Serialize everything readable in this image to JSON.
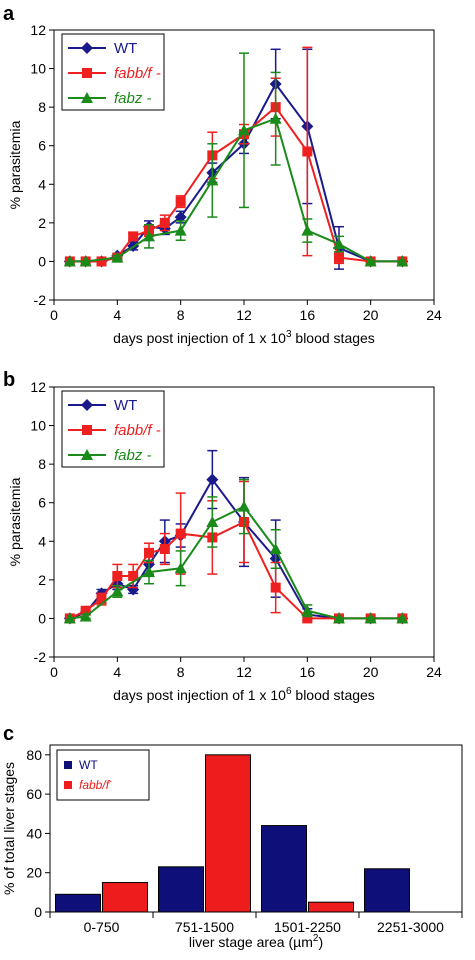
{
  "figure": {
    "panels": [
      "a",
      "b",
      "c"
    ]
  },
  "chart_data": [
    {
      "type": "line",
      "panel": "a",
      "xlabel_main": "days post injection of 1 x 10",
      "xlabel_sup": "3",
      "xlabel_tail": " blood stages",
      "ylabel": "% parasitemia",
      "xlim": [
        0,
        24
      ],
      "ylim": [
        -2,
        12
      ],
      "xticks": [
        0,
        4,
        8,
        12,
        16,
        20,
        24
      ],
      "yticks": [
        -2,
        0,
        2,
        4,
        6,
        8,
        10,
        12
      ],
      "legend_position": "top-left",
      "series": [
        {
          "name": "WT",
          "italic": false,
          "color": "#1a1a8c",
          "marker": "diamond",
          "points": [
            {
              "x": 1,
              "y": 0,
              "err": 0
            },
            {
              "x": 2,
              "y": 0,
              "err": 0
            },
            {
              "x": 3,
              "y": 0,
              "err": 0
            },
            {
              "x": 4,
              "y": 0.3,
              "err": 0.1
            },
            {
              "x": 5,
              "y": 0.8,
              "err": 0.2
            },
            {
              "x": 6,
              "y": 1.8,
              "err": 0.3
            },
            {
              "x": 7,
              "y": 1.7,
              "err": 0.3
            },
            {
              "x": 8,
              "y": 2.3,
              "err": 0.3
            },
            {
              "x": 10,
              "y": 4.6,
              "err": 0.5
            },
            {
              "x": 12,
              "y": 6.1,
              "err": 0.5
            },
            {
              "x": 14,
              "y": 9.2,
              "err": 1.8
            },
            {
              "x": 16,
              "y": 7.0,
              "err": 4.0
            },
            {
              "x": 18,
              "y": 0.7,
              "err": 1.1
            },
            {
              "x": 20,
              "y": 0,
              "err": 0
            },
            {
              "x": 22,
              "y": 0,
              "err": 0
            }
          ]
        },
        {
          "name": "fabb/f -",
          "italic": true,
          "color": "#ee2020",
          "marker": "square",
          "points": [
            {
              "x": 1,
              "y": 0,
              "err": 0
            },
            {
              "x": 2,
              "y": 0,
              "err": 0
            },
            {
              "x": 3,
              "y": 0,
              "err": 0
            },
            {
              "x": 4,
              "y": 0.2,
              "err": 0.1
            },
            {
              "x": 5,
              "y": 1.3,
              "err": 0.2
            },
            {
              "x": 6,
              "y": 1.6,
              "err": 0.3
            },
            {
              "x": 7,
              "y": 2.0,
              "err": 0.4
            },
            {
              "x": 8,
              "y": 3.1,
              "err": 0.3
            },
            {
              "x": 10,
              "y": 5.5,
              "err": 1.2
            },
            {
              "x": 12,
              "y": 6.6,
              "err": 0.5
            },
            {
              "x": 14,
              "y": 8.0,
              "err": 1.5
            },
            {
              "x": 16,
              "y": 5.7,
              "err": 5.4
            },
            {
              "x": 18,
              "y": 0.2,
              "err": 0.3
            },
            {
              "x": 20,
              "y": 0,
              "err": 0
            },
            {
              "x": 22,
              "y": 0,
              "err": 0
            }
          ]
        },
        {
          "name": "fabz -",
          "italic": true,
          "color": "#1a8a1a",
          "marker": "triangle",
          "points": [
            {
              "x": 1,
              "y": 0,
              "err": 0
            },
            {
              "x": 2,
              "y": 0,
              "err": 0
            },
            {
              "x": 4,
              "y": 0.2,
              "err": 0.1
            },
            {
              "x": 6,
              "y": 1.3,
              "err": 0.6
            },
            {
              "x": 8,
              "y": 1.6,
              "err": 0.5
            },
            {
              "x": 10,
              "y": 4.2,
              "err": 1.9
            },
            {
              "x": 12,
              "y": 6.8,
              "err": 4.0
            },
            {
              "x": 14,
              "y": 7.4,
              "err": 2.4
            },
            {
              "x": 16,
              "y": 1.6,
              "err": 0.6
            },
            {
              "x": 18,
              "y": 0.9,
              "err": 0.4
            },
            {
              "x": 20,
              "y": 0,
              "err": 0
            },
            {
              "x": 22,
              "y": 0,
              "err": 0
            }
          ]
        }
      ]
    },
    {
      "type": "line",
      "panel": "b",
      "xlabel_main": "days post injection of 1 x 10",
      "xlabel_sup": "6",
      "xlabel_tail": " blood stages",
      "ylabel": "% parasitemia",
      "xlim": [
        0,
        24
      ],
      "ylim": [
        -2,
        12
      ],
      "xticks": [
        0,
        4,
        8,
        12,
        16,
        20,
        24
      ],
      "yticks": [
        -2,
        0,
        2,
        4,
        6,
        8,
        10,
        12
      ],
      "legend_position": "top-left",
      "series": [
        {
          "name": "WT",
          "italic": false,
          "color": "#1a1a8c",
          "marker": "diamond",
          "points": [
            {
              "x": 1,
              "y": 0,
              "err": 0
            },
            {
              "x": 2,
              "y": 0.3,
              "err": 0.1
            },
            {
              "x": 3,
              "y": 1.3,
              "err": 0.2
            },
            {
              "x": 4,
              "y": 1.8,
              "err": 0.3
            },
            {
              "x": 5,
              "y": 1.5,
              "err": 0.2
            },
            {
              "x": 6,
              "y": 2.8,
              "err": 0.5
            },
            {
              "x": 7,
              "y": 4.0,
              "err": 1.1
            },
            {
              "x": 8,
              "y": 4.3,
              "err": 0.6
            },
            {
              "x": 10,
              "y": 7.2,
              "err": 1.5
            },
            {
              "x": 12,
              "y": 5.0,
              "err": 2.3
            },
            {
              "x": 14,
              "y": 3.1,
              "err": 2.0
            },
            {
              "x": 16,
              "y": 0.2,
              "err": 0.3
            },
            {
              "x": 18,
              "y": 0,
              "err": 0
            },
            {
              "x": 20,
              "y": 0,
              "err": 0
            },
            {
              "x": 22,
              "y": 0,
              "err": 0
            }
          ]
        },
        {
          "name": "fabb/f -",
          "italic": true,
          "color": "#ee2020",
          "marker": "square",
          "points": [
            {
              "x": 1,
              "y": 0,
              "err": 0
            },
            {
              "x": 2,
              "y": 0.4,
              "err": 0.1
            },
            {
              "x": 3,
              "y": 1.0,
              "err": 0.3
            },
            {
              "x": 4,
              "y": 2.2,
              "err": 0.6
            },
            {
              "x": 5,
              "y": 2.2,
              "err": 0.6
            },
            {
              "x": 6,
              "y": 3.4,
              "err": 0.5
            },
            {
              "x": 7,
              "y": 3.6,
              "err": 0.8
            },
            {
              "x": 8,
              "y": 4.4,
              "err": 2.1
            },
            {
              "x": 10,
              "y": 4.2,
              "err": 1.9
            },
            {
              "x": 12,
              "y": 5.0,
              "err": 2.1
            },
            {
              "x": 14,
              "y": 1.6,
              "err": 1.3
            },
            {
              "x": 16,
              "y": 0,
              "err": 0
            },
            {
              "x": 18,
              "y": 0,
              "err": 0
            },
            {
              "x": 20,
              "y": 0,
              "err": 0
            },
            {
              "x": 22,
              "y": 0,
              "err": 0
            }
          ]
        },
        {
          "name": "fabz -",
          "italic": true,
          "color": "#1a8a1a",
          "marker": "triangle",
          "points": [
            {
              "x": 1,
              "y": 0,
              "err": 0
            },
            {
              "x": 2,
              "y": 0.1,
              "err": 0.1
            },
            {
              "x": 4,
              "y": 1.4,
              "err": 0.3
            },
            {
              "x": 6,
              "y": 2.4,
              "err": 0.6
            },
            {
              "x": 8,
              "y": 2.6,
              "err": 0.9
            },
            {
              "x": 10,
              "y": 5.0,
              "err": 1.3
            },
            {
              "x": 12,
              "y": 5.8,
              "err": 1.4
            },
            {
              "x": 14,
              "y": 3.6,
              "err": 1.0
            },
            {
              "x": 16,
              "y": 0.4,
              "err": 0.3
            },
            {
              "x": 18,
              "y": 0,
              "err": 0
            },
            {
              "x": 20,
              "y": 0,
              "err": 0
            },
            {
              "x": 22,
              "y": 0,
              "err": 0
            }
          ]
        }
      ]
    },
    {
      "type": "bar",
      "panel": "c",
      "categories": [
        "0-750",
        "751-1500",
        "1501-2250",
        "2251-3000"
      ],
      "xlabel_main": "liver stage area (µm",
      "xlabel_sup": "2",
      "xlabel_tail": ")",
      "ylabel": "% of total liver stages",
      "ylim": [
        0,
        85
      ],
      "yticks": [
        0,
        20,
        40,
        60,
        80
      ],
      "legend_position": "top-left",
      "series": [
        {
          "name": "WT",
          "italic": false,
          "sup": "",
          "color": "#0f0f7a",
          "values": [
            9,
            23,
            44,
            22
          ]
        },
        {
          "name": "fabb/f",
          "italic": true,
          "sup": "-",
          "color": "#ee1c1c",
          "values": [
            15,
            80,
            5,
            0
          ]
        }
      ]
    }
  ]
}
